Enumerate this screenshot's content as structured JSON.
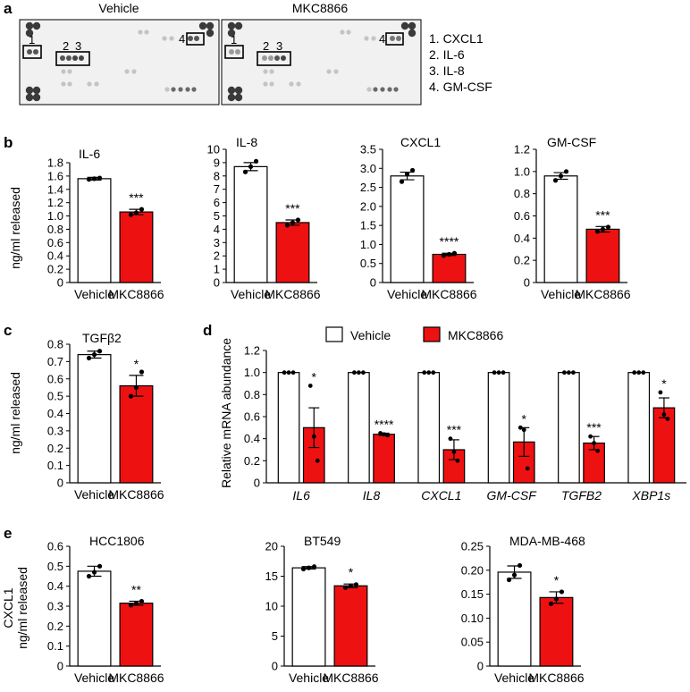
{
  "panel_labels": {
    "a": "a",
    "b": "b",
    "c": "c",
    "d": "d",
    "e": "e"
  },
  "colors": {
    "vehicle": "#ffffff",
    "treated": "#ee1111",
    "stroke": "#000000"
  },
  "blot": {
    "titles": [
      "Vehicle",
      "MKC8866"
    ],
    "legend": [
      "1. CXCL1",
      "2. IL-6",
      "3. IL-8",
      "4. GM-CSF"
    ],
    "box_labels": [
      "1",
      "2",
      "3",
      "4"
    ]
  },
  "shared": {
    "categories": [
      "Vehicle",
      "MKC8866"
    ],
    "ylabel": "ng/ml released",
    "ylabel_e_top": "CXCL1",
    "ylabel_e_bottom": "ng/ml released",
    "ylabel_d": "Relative mRNA abundance"
  },
  "chart_data": [
    {
      "id": "b1",
      "type": "bar",
      "title": "IL-6",
      "categories": [
        "Vehicle",
        "MKC8866"
      ],
      "values": [
        1.56,
        1.06
      ],
      "errors": [
        0.02,
        0.04
      ],
      "points": [
        [
          1.55,
          1.56,
          1.57
        ],
        [
          1.02,
          1.05,
          1.1
        ]
      ],
      "ylim": [
        0,
        1.8
      ],
      "yticks": [
        "0",
        "0.2",
        "0.4",
        "0.6",
        "0.8",
        "1.0",
        "1.2",
        "1.4",
        "1.6",
        "1.8"
      ],
      "significance": "***"
    },
    {
      "id": "b2",
      "type": "bar",
      "title": "IL-8",
      "categories": [
        "Vehicle",
        "MKC8866"
      ],
      "values": [
        8.7,
        4.5
      ],
      "errors": [
        0.3,
        0.2
      ],
      "points": [
        [
          8.3,
          8.7,
          9.1
        ],
        [
          4.3,
          4.5,
          4.7
        ]
      ],
      "ylim": [
        0,
        10
      ],
      "yticks": [
        "0",
        "1",
        "2",
        "3",
        "4",
        "5",
        "6",
        "7",
        "8",
        "9",
        "10"
      ],
      "significance": "***"
    },
    {
      "id": "b3",
      "type": "bar",
      "title": "CXCL1",
      "categories": [
        "Vehicle",
        "MKC8866"
      ],
      "values": [
        2.8,
        0.74
      ],
      "errors": [
        0.1,
        0.03
      ],
      "points": [
        [
          2.65,
          2.85,
          2.95
        ],
        [
          0.71,
          0.74,
          0.77
        ]
      ],
      "ylim": [
        0,
        3.5
      ],
      "yticks": [
        "0",
        "0.5",
        "1.0",
        "1.5",
        "2.0",
        "2.5",
        "3.0",
        "3.5"
      ],
      "significance": "****"
    },
    {
      "id": "b4",
      "type": "bar",
      "title": "GM-CSF",
      "categories": [
        "Vehicle",
        "MKC8866"
      ],
      "values": [
        0.96,
        0.48
      ],
      "errors": [
        0.03,
        0.025
      ],
      "points": [
        [
          0.92,
          0.96,
          1.0
        ],
        [
          0.46,
          0.48,
          0.5
        ]
      ],
      "ylim": [
        0,
        1.2
      ],
      "yticks": [
        "0",
        "0.2",
        "0.4",
        "0.6",
        "0.8",
        "1.0",
        "1.2"
      ],
      "significance": "***"
    },
    {
      "id": "c",
      "type": "bar",
      "title": "TGFβ2",
      "categories": [
        "Vehicle",
        "MKC8866"
      ],
      "values": [
        0.74,
        0.56
      ],
      "errors": [
        0.02,
        0.06
      ],
      "points": [
        [
          0.72,
          0.74,
          0.76
        ],
        [
          0.5,
          0.55,
          0.64
        ]
      ],
      "ylim": [
        0,
        0.8
      ],
      "yticks": [
        "0",
        "0.1",
        "0.2",
        "0.3",
        "0.4",
        "0.5",
        "0.6",
        "0.7",
        "0.8"
      ],
      "significance": "*"
    },
    {
      "id": "d",
      "type": "bar",
      "categories": [
        "IL6",
        "IL8",
        "CXCL1",
        "GM-CSF",
        "TGFB2",
        "XBP1s"
      ],
      "series": [
        {
          "name": "Vehicle",
          "values": [
            1.0,
            1.0,
            1.0,
            1.0,
            1.0,
            1.0
          ],
          "errors": [
            0,
            0,
            0,
            0,
            0,
            0
          ]
        },
        {
          "name": "MKC8866",
          "values": [
            0.5,
            0.44,
            0.3,
            0.37,
            0.36,
            0.68
          ],
          "errors": [
            0.18,
            0.01,
            0.09,
            0.13,
            0.06,
            0.09
          ]
        }
      ],
      "points": [
        [
          0.88,
          0.42,
          0.2
        ],
        [
          0.45,
          0.44,
          0.43
        ],
        [
          0.4,
          0.28,
          0.2
        ],
        [
          0.5,
          0.48,
          0.13
        ],
        [
          0.42,
          0.36,
          0.29
        ],
        [
          0.82,
          0.62,
          0.58
        ]
      ],
      "ylim": [
        0,
        1.2
      ],
      "yticks": [
        "0",
        "0.2",
        "0.4",
        "0.6",
        "0.8",
        "1.0",
        "1.2"
      ],
      "significance": [
        "*",
        "****",
        "***",
        "*",
        "***",
        "*"
      ],
      "legend": "top"
    },
    {
      "id": "e1",
      "type": "bar",
      "title": "HCC1806",
      "categories": [
        "Vehicle",
        "MKC8866"
      ],
      "values": [
        0.475,
        0.315
      ],
      "errors": [
        0.025,
        0.01
      ],
      "points": [
        [
          0.45,
          0.47,
          0.5
        ],
        [
          0.305,
          0.315,
          0.325
        ]
      ],
      "ylim": [
        0,
        0.6
      ],
      "yticks": [
        "0",
        "0.1",
        "0.2",
        "0.3",
        "0.4",
        "0.5",
        "0.6"
      ],
      "significance": "**"
    },
    {
      "id": "e2",
      "type": "bar",
      "title": "BT549",
      "categories": [
        "Vehicle",
        "MKC8866"
      ],
      "values": [
        16.4,
        13.4
      ],
      "errors": [
        0.2,
        0.3
      ],
      "points": [
        [
          16.2,
          16.4,
          16.6
        ],
        [
          13.1,
          13.4,
          13.6
        ]
      ],
      "ylim": [
        0,
        20
      ],
      "yticks": [
        "0",
        "5",
        "10",
        "15",
        "20"
      ],
      "significance": "*"
    },
    {
      "id": "e3",
      "type": "bar",
      "title": "MDA-MB-468",
      "categories": [
        "Vehicle",
        "MKC8866"
      ],
      "values": [
        0.196,
        0.143
      ],
      "errors": [
        0.013,
        0.012
      ],
      "points": [
        [
          0.18,
          0.19,
          0.21
        ],
        [
          0.13,
          0.14,
          0.155
        ]
      ],
      "ylim": [
        0,
        0.25
      ],
      "yticks": [
        "0",
        "0.05",
        "0.10",
        "0.15",
        "0.20",
        "0.25"
      ],
      "significance": "*"
    }
  ]
}
